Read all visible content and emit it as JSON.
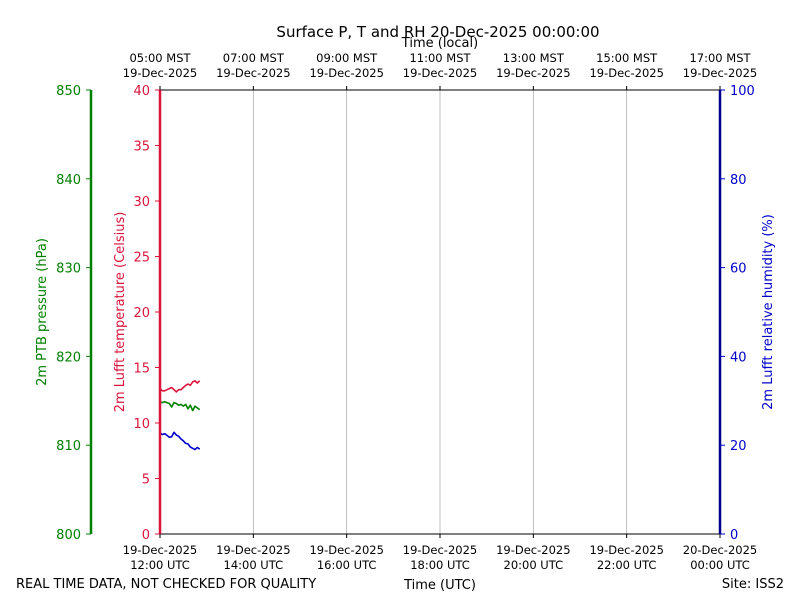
{
  "chart_data": {
    "type": "line",
    "title": "Surface P, T and RH 20-Dec-2025 00:00:00",
    "footer_left": "REAL TIME DATA, NOT CHECKED FOR QUALITY",
    "footer_right": "Site: ISS2",
    "xlabel_bottom": "Time (UTC)",
    "xlabel_top": "Time (local)",
    "xlim_utc_hours": [
      12,
      24
    ],
    "grid": "vertical",
    "x_ticks_utc": [
      {
        "hour": 12,
        "date": "19-Dec-2025",
        "time": "12:00 UTC"
      },
      {
        "hour": 14,
        "date": "19-Dec-2025",
        "time": "14:00 UTC"
      },
      {
        "hour": 16,
        "date": "19-Dec-2025",
        "time": "16:00 UTC"
      },
      {
        "hour": 18,
        "date": "19-Dec-2025",
        "time": "18:00 UTC"
      },
      {
        "hour": 20,
        "date": "19-Dec-2025",
        "time": "20:00 UTC"
      },
      {
        "hour": 22,
        "date": "19-Dec-2025",
        "time": "22:00 UTC"
      },
      {
        "hour": 24,
        "date": "20-Dec-2025",
        "time": "00:00 UTC"
      }
    ],
    "x_ticks_local": [
      {
        "hour": 12,
        "time": "05:00 MST",
        "date": "19-Dec-2025"
      },
      {
        "hour": 14,
        "time": "07:00 MST",
        "date": "19-Dec-2025"
      },
      {
        "hour": 16,
        "time": "09:00 MST",
        "date": "19-Dec-2025"
      },
      {
        "hour": 18,
        "time": "11:00 MST",
        "date": "19-Dec-2025"
      },
      {
        "hour": 20,
        "time": "13:00 MST",
        "date": "19-Dec-2025"
      },
      {
        "hour": 22,
        "time": "15:00 MST",
        "date": "19-Dec-2025"
      },
      {
        "hour": 24,
        "time": "17:00 MST",
        "date": "19-Dec-2025"
      }
    ],
    "axes": {
      "pressure": {
        "label": "2m PTB pressure (hPa)",
        "ylim": [
          800,
          850
        ],
        "ticks": [
          800,
          810,
          820,
          830,
          840,
          850
        ],
        "color": "#008000"
      },
      "temperature": {
        "label": "2m Lufft temperature (Celsius)",
        "ylim": [
          0,
          40
        ],
        "ticks": [
          0,
          5,
          10,
          15,
          20,
          25,
          30,
          35,
          40
        ],
        "color": "#dc143c"
      },
      "humidity": {
        "label": "2m Lufft relative humidity (%)",
        "ylim": [
          0,
          100
        ],
        "ticks": [
          0,
          20,
          40,
          60,
          80,
          100
        ],
        "color": "#0000cd"
      }
    },
    "series": [
      {
        "axis": "temperature",
        "color": "#dc143c",
        "x": [
          12.0,
          12.05,
          12.1,
          12.15,
          12.2,
          12.25,
          12.3,
          12.35,
          12.4,
          12.45,
          12.5,
          12.55,
          12.6,
          12.65,
          12.7,
          12.75,
          12.8,
          12.85
        ],
        "y": [
          13.1,
          12.9,
          12.9,
          13.0,
          13.1,
          13.2,
          13.0,
          12.8,
          13.0,
          13.0,
          13.2,
          13.4,
          13.5,
          13.4,
          13.7,
          13.8,
          13.6,
          13.8
        ]
      },
      {
        "axis": "pressure",
        "color": "#008000",
        "x": [
          12.0,
          12.05,
          12.1,
          12.15,
          12.2,
          12.25,
          12.3,
          12.35,
          12.4,
          12.45,
          12.5,
          12.55,
          12.6,
          12.65,
          12.7,
          12.75,
          12.8,
          12.85
        ],
        "y": [
          814.9,
          814.8,
          814.9,
          814.8,
          814.7,
          814.3,
          814.8,
          814.7,
          814.5,
          814.6,
          814.4,
          814.6,
          814.1,
          814.5,
          813.9,
          814.4,
          814.2,
          814.0
        ]
      },
      {
        "axis": "humidity",
        "color": "#0000cd",
        "x": [
          12.0,
          12.05,
          12.1,
          12.15,
          12.2,
          12.25,
          12.3,
          12.35,
          12.4,
          12.45,
          12.5,
          12.55,
          12.6,
          12.65,
          12.7,
          12.75,
          12.8,
          12.85
        ],
        "y": [
          22.8,
          22.4,
          22.6,
          22.2,
          21.8,
          21.9,
          22.9,
          22.3,
          22.0,
          21.4,
          21.0,
          20.4,
          20.3,
          19.6,
          19.3,
          19.0,
          19.5,
          19.1
        ]
      }
    ]
  }
}
